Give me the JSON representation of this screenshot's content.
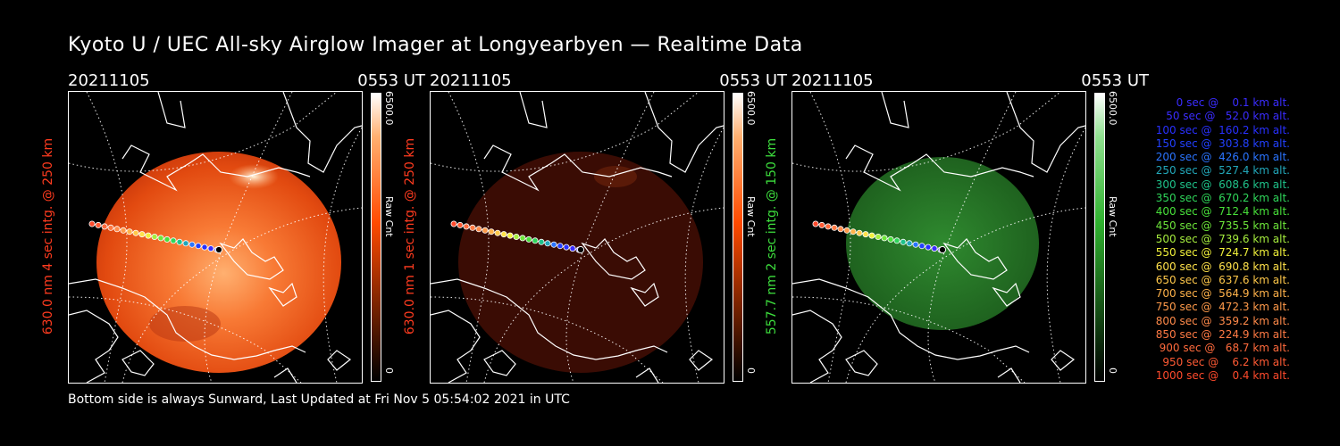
{
  "title": "Kyoto U / UEC All-sky Airglow Imager at Longyearbyen — Realtime Data",
  "footer": "Bottom side is always Sunward, Last Updated at Fri Nov  5 05:54:02 2021 in UTC",
  "panels": [
    {
      "date": "20211105",
      "time": "0553 UT",
      "side_label": "630.0 nm 4 sec intg. @ 250 km",
      "label_color": "#ff3b1f",
      "cbar_max": "6500.0",
      "cbar_unit": "Raw Cnt",
      "cbar_min": "0",
      "cbar_color": "#ff4a00"
    },
    {
      "date": "20211105",
      "time": "0553 UT",
      "side_label": "630.0 nm 1 sec intg. @ 250 km",
      "label_color": "#ff3b1f",
      "cbar_max": "6500.0",
      "cbar_unit": "Raw Cnt",
      "cbar_min": "0",
      "cbar_color": "#ff4a00"
    },
    {
      "date": "20211105",
      "time": "0553 UT",
      "side_label": "557.7 nm 2 sec intg. @ 150 km",
      "label_color": "#3dde3d",
      "cbar_max": "6500.0",
      "cbar_unit": "Raw Cnt",
      "cbar_min": "0",
      "cbar_color": "#2fb12f"
    }
  ],
  "legend": [
    {
      "text": "   0 sec @    0.1 km alt.",
      "color": "#3a2cff"
    },
    {
      "text": "  50 sec @   52.0 km alt.",
      "color": "#3a2cff"
    },
    {
      "text": " 100 sec @  160.2 km alt.",
      "color": "#2830ff"
    },
    {
      "text": " 150 sec @  303.8 km alt.",
      "color": "#2240ff"
    },
    {
      "text": " 200 sec @  426.0 km alt.",
      "color": "#2a74ff"
    },
    {
      "text": " 250 sec @  527.4 km alt.",
      "color": "#22a7b9"
    },
    {
      "text": " 300 sec @  608.6 km alt.",
      "color": "#1fc28a"
    },
    {
      "text": " 350 sec @  670.2 km alt.",
      "color": "#2fd65a"
    },
    {
      "text": " 400 sec @  712.4 km alt.",
      "color": "#48e03a"
    },
    {
      "text": " 450 sec @  735.5 km alt.",
      "color": "#6de63a"
    },
    {
      "text": " 500 sec @  739.6 km alt.",
      "color": "#a6ee3e"
    },
    {
      "text": " 550 sec @  724.7 km alt.",
      "color": "#f0f03a"
    },
    {
      "text": " 600 sec @  690.8 km alt.",
      "color": "#ffe14a"
    },
    {
      "text": " 650 sec @  637.6 km alt.",
      "color": "#ffc84a"
    },
    {
      "text": " 700 sec @  564.9 km alt.",
      "color": "#ffb24a"
    },
    {
      "text": " 750 sec @  472.3 km alt.",
      "color": "#ff9a4a"
    },
    {
      "text": " 800 sec @  359.2 km alt.",
      "color": "#ff8a4a"
    },
    {
      "text": " 850 sec @  224.9 km alt.",
      "color": "#ff7a44"
    },
    {
      "text": " 900 sec @   68.7 km alt.",
      "color": "#ff6a3c"
    },
    {
      "text": " 950 sec @    6.2 km alt.",
      "color": "#ff5a34"
    },
    {
      "text": "1000 sec @    0.4 km alt.",
      "color": "#ff4a2c"
    }
  ]
}
